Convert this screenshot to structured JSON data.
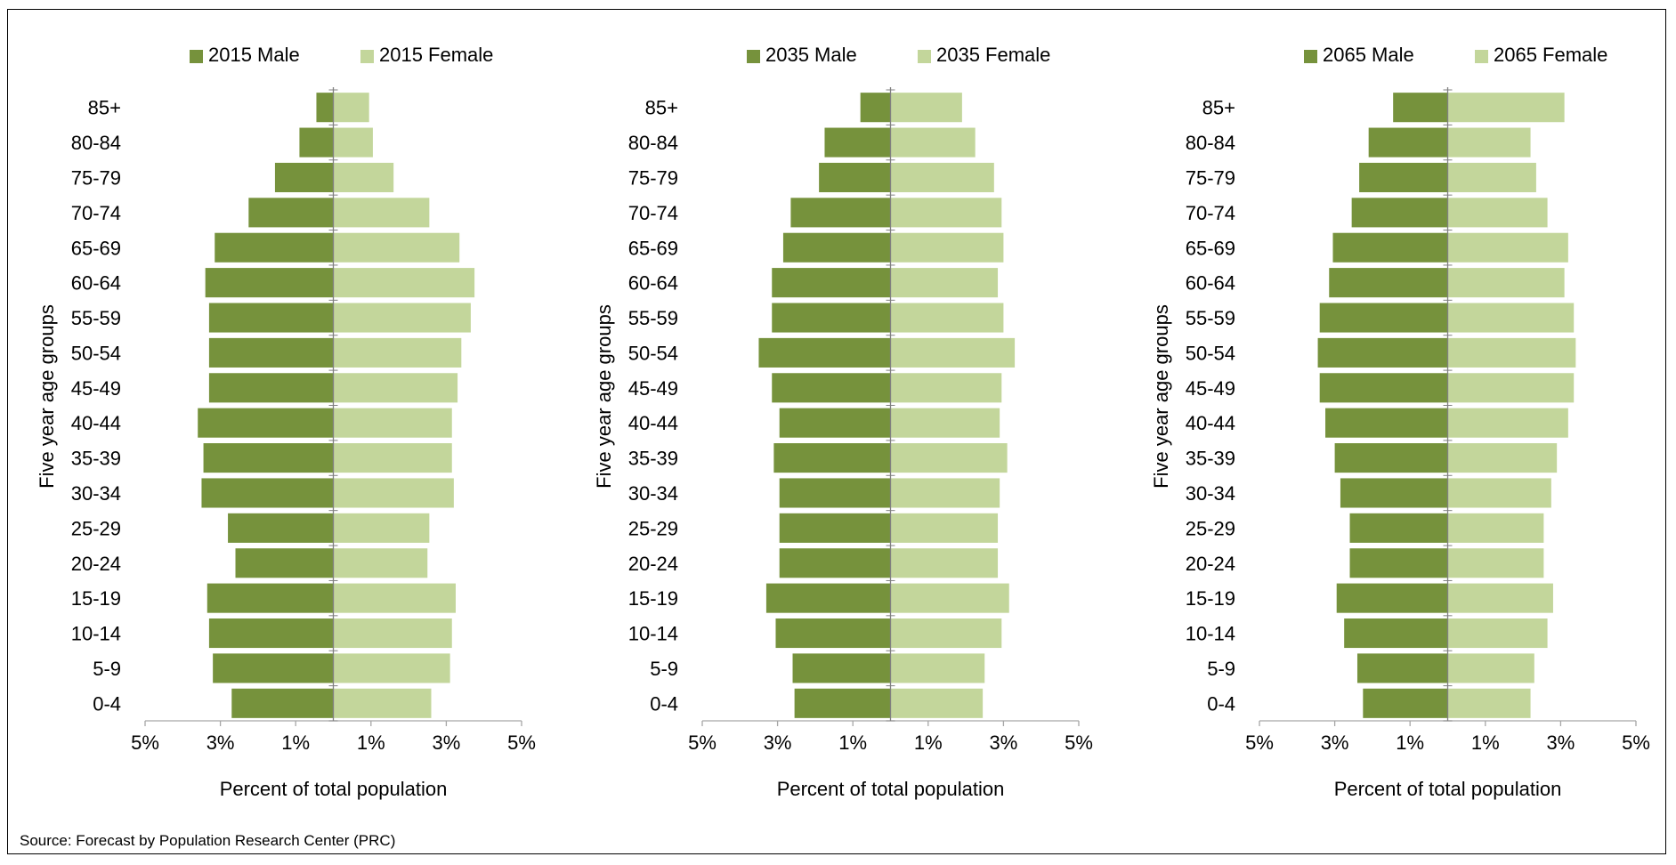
{
  "source_note": "Source: Forecast by Population Research Center (PRC)",
  "colors": {
    "male": "#76923c",
    "female": "#c3d69b",
    "axis": "#a6a6a6"
  },
  "chart_data": [
    {
      "type": "bar",
      "title": "",
      "ylabel": "Five year age groups",
      "xlabel": "Percent of total population",
      "xlim": [
        -5,
        5
      ],
      "x_tick_labels": [
        "5%",
        "3%",
        "1%",
        "1%",
        "3%",
        "5%"
      ],
      "legend_position": "top",
      "categories": [
        "0-4",
        "5-9",
        "10-14",
        "15-19",
        "20-24",
        "25-29",
        "30-34",
        "35-39",
        "40-44",
        "45-49",
        "50-54",
        "55-59",
        "60-64",
        "65-69",
        "70-74",
        "75-79",
        "80-84",
        "85+"
      ],
      "series": [
        {
          "name": "2015 Male",
          "values": [
            2.7,
            3.2,
            3.3,
            3.35,
            2.6,
            2.8,
            3.5,
            3.45,
            3.6,
            3.3,
            3.3,
            3.3,
            3.4,
            3.15,
            2.25,
            1.55,
            0.9,
            0.45
          ]
        },
        {
          "name": "2015 Female",
          "values": [
            2.6,
            3.1,
            3.15,
            3.25,
            2.5,
            2.55,
            3.2,
            3.15,
            3.15,
            3.3,
            3.4,
            3.65,
            3.75,
            3.35,
            2.55,
            1.6,
            1.05,
            0.95
          ]
        }
      ]
    },
    {
      "type": "bar",
      "title": "",
      "ylabel": "Five year age groups",
      "xlabel": "Percent of total population",
      "xlim": [
        -5,
        5
      ],
      "x_tick_labels": [
        "5%",
        "3%",
        "1%",
        "1%",
        "3%",
        "5%"
      ],
      "legend_position": "top",
      "categories": [
        "0-4",
        "5-9",
        "10-14",
        "15-19",
        "20-24",
        "25-29",
        "30-34",
        "35-39",
        "40-44",
        "45-49",
        "50-54",
        "55-59",
        "60-64",
        "65-69",
        "70-74",
        "75-79",
        "80-84",
        "85+"
      ],
      "series": [
        {
          "name": "2035 Male",
          "values": [
            2.55,
            2.6,
            3.05,
            3.3,
            2.95,
            2.95,
            2.95,
            3.1,
            2.95,
            3.15,
            3.5,
            3.15,
            3.15,
            2.85,
            2.65,
            1.9,
            1.75,
            0.8
          ]
        },
        {
          "name": "2035 Female",
          "values": [
            2.45,
            2.5,
            2.95,
            3.15,
            2.85,
            2.85,
            2.9,
            3.1,
            2.9,
            2.95,
            3.3,
            3.0,
            2.85,
            3.0,
            2.95,
            2.75,
            2.25,
            1.9
          ]
        }
      ]
    },
    {
      "type": "bar",
      "title": "",
      "ylabel": "Five year age groups",
      "xlabel": "Percent of total population",
      "xlim": [
        -5,
        5
      ],
      "x_tick_labels": [
        "5%",
        "3%",
        "1%",
        "1%",
        "3%",
        "5%"
      ],
      "legend_position": "top",
      "categories": [
        "0-4",
        "5-9",
        "10-14",
        "15-19",
        "20-24",
        "25-29",
        "30-34",
        "35-39",
        "40-44",
        "45-49",
        "50-54",
        "55-59",
        "60-64",
        "65-69",
        "70-74",
        "75-79",
        "80-84",
        "85+"
      ],
      "series": [
        {
          "name": "2065 Male",
          "values": [
            2.25,
            2.4,
            2.75,
            2.95,
            2.6,
            2.6,
            2.85,
            3.0,
            3.25,
            3.4,
            3.45,
            3.4,
            3.15,
            3.05,
            2.55,
            2.35,
            2.1,
            1.45
          ]
        },
        {
          "name": "2065 Female",
          "values": [
            2.2,
            2.3,
            2.65,
            2.8,
            2.55,
            2.55,
            2.75,
            2.9,
            3.2,
            3.35,
            3.4,
            3.35,
            3.1,
            3.2,
            2.65,
            2.35,
            2.2,
            3.1
          ]
        }
      ]
    }
  ]
}
